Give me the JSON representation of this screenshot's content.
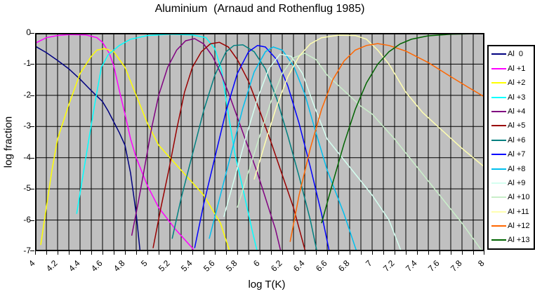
{
  "title": "Aluminium  (Arnaud and Rothenflug 1985)",
  "chart_data": {
    "type": "line",
    "title": "Aluminium  (Arnaud and Rothenflug 1985)",
    "xlabel": "log T(K)",
    "ylabel": "log fraction",
    "xlim": [
      4,
      8
    ],
    "ylim": [
      -7,
      0
    ],
    "grid": "on",
    "plot_background": "#c0c0c0",
    "gridline_color": "#000000",
    "legend_position": "right-outside",
    "axes": {
      "x_minor_step": 0.1,
      "x_label_step": 0.2,
      "y_step": 1,
      "x_tick_labels": [
        "4",
        "4.2",
        "4.4",
        "4.6",
        "4.8",
        "5",
        "5.2",
        "5.4",
        "5.6",
        "5.8",
        "6",
        "6.2",
        "6.4",
        "6.6",
        "6.8",
        "7",
        "7.2",
        "7.4",
        "7.6",
        "7.8",
        "8"
      ],
      "y_tick_labels": [
        "0",
        "-1",
        "-2",
        "-3",
        "-4",
        "-5",
        "-6",
        "-7"
      ]
    },
    "series": [
      {
        "name": "Al  0",
        "color": "#000080",
        "points": [
          [
            4.0,
            -0.42
          ],
          [
            4.1,
            -0.63
          ],
          [
            4.2,
            -0.88
          ],
          [
            4.3,
            -1.15
          ],
          [
            4.4,
            -1.48
          ],
          [
            4.5,
            -1.85
          ],
          [
            4.6,
            -2.2
          ],
          [
            4.65,
            -2.5
          ],
          [
            4.7,
            -2.85
          ],
          [
            4.75,
            -3.2
          ],
          [
            4.8,
            -3.6
          ],
          [
            4.85,
            -4.5
          ],
          [
            4.9,
            -5.8
          ],
          [
            4.94,
            -7.2
          ]
        ]
      },
      {
        "name": "Al +1",
        "color": "#ff00ff",
        "points": [
          [
            4.0,
            -0.33
          ],
          [
            4.1,
            -0.15
          ],
          [
            4.2,
            -0.08
          ],
          [
            4.3,
            -0.05
          ],
          [
            4.45,
            -0.06
          ],
          [
            4.55,
            -0.15
          ],
          [
            4.6,
            -0.3
          ],
          [
            4.66,
            -0.65
          ],
          [
            4.7,
            -1.05
          ],
          [
            4.75,
            -1.85
          ],
          [
            4.8,
            -2.6
          ],
          [
            4.85,
            -3.4
          ],
          [
            4.9,
            -4.0
          ],
          [
            5.0,
            -4.9
          ],
          [
            5.1,
            -5.6
          ],
          [
            5.25,
            -6.3
          ],
          [
            5.4,
            -6.9
          ],
          [
            5.45,
            -7.2
          ]
        ]
      },
      {
        "name": "Al +2",
        "color": "#ffff00",
        "points": [
          [
            4.05,
            -6.8
          ],
          [
            4.1,
            -5.6
          ],
          [
            4.15,
            -4.4
          ],
          [
            4.2,
            -3.4
          ],
          [
            4.3,
            -2.3
          ],
          [
            4.4,
            -1.3
          ],
          [
            4.5,
            -0.75
          ],
          [
            4.55,
            -0.55
          ],
          [
            4.62,
            -0.5
          ],
          [
            4.7,
            -0.6
          ],
          [
            4.8,
            -1.1
          ],
          [
            4.9,
            -2.0
          ],
          [
            5.0,
            -2.9
          ],
          [
            5.1,
            -3.6
          ],
          [
            5.3,
            -4.4
          ],
          [
            5.5,
            -5.2
          ],
          [
            5.65,
            -6.1
          ],
          [
            5.75,
            -7.2
          ]
        ]
      },
      {
        "name": "Al +3",
        "color": "#00ffff",
        "points": [
          [
            4.37,
            -5.8
          ],
          [
            4.42,
            -4.7
          ],
          [
            4.47,
            -3.6
          ],
          [
            4.53,
            -2.3
          ],
          [
            4.59,
            -1.1
          ],
          [
            4.65,
            -0.7
          ],
          [
            4.75,
            -0.4
          ],
          [
            4.85,
            -0.2
          ],
          [
            5.0,
            -0.08
          ],
          [
            5.2,
            -0.04
          ],
          [
            5.4,
            -0.06
          ],
          [
            5.52,
            -0.15
          ],
          [
            5.6,
            -0.5
          ],
          [
            5.66,
            -1.2
          ],
          [
            5.72,
            -2.6
          ],
          [
            5.78,
            -3.9
          ],
          [
            5.85,
            -5.0
          ],
          [
            5.93,
            -6.3
          ],
          [
            5.99,
            -7.2
          ]
        ]
      },
      {
        "name": "Al +4",
        "color": "#800080",
        "points": [
          [
            4.86,
            -6.5
          ],
          [
            4.92,
            -5.4
          ],
          [
            4.98,
            -4.2
          ],
          [
            5.04,
            -3.0
          ],
          [
            5.1,
            -2.0
          ],
          [
            5.18,
            -1.1
          ],
          [
            5.26,
            -0.55
          ],
          [
            5.34,
            -0.25
          ],
          [
            5.42,
            -0.18
          ],
          [
            5.5,
            -0.35
          ],
          [
            5.58,
            -0.75
          ],
          [
            5.66,
            -1.35
          ],
          [
            5.74,
            -2.1
          ],
          [
            5.82,
            -2.9
          ],
          [
            5.9,
            -3.7
          ],
          [
            5.98,
            -4.5
          ],
          [
            6.06,
            -5.4
          ],
          [
            6.14,
            -6.3
          ],
          [
            6.2,
            -7.2
          ]
        ]
      },
      {
        "name": "Al +5",
        "color": "#990000",
        "points": [
          [
            5.05,
            -6.9
          ],
          [
            5.12,
            -5.6
          ],
          [
            5.19,
            -4.4
          ],
          [
            5.26,
            -3.1
          ],
          [
            5.33,
            -1.9
          ],
          [
            5.4,
            -1.1
          ],
          [
            5.48,
            -0.6
          ],
          [
            5.56,
            -0.35
          ],
          [
            5.64,
            -0.3
          ],
          [
            5.72,
            -0.45
          ],
          [
            5.8,
            -0.85
          ],
          [
            5.9,
            -1.55
          ],
          [
            6.0,
            -2.5
          ],
          [
            6.1,
            -3.5
          ],
          [
            6.2,
            -4.55
          ],
          [
            6.3,
            -5.6
          ],
          [
            6.42,
            -7.2
          ]
        ]
      },
      {
        "name": "Al +6",
        "color": "#008080",
        "points": [
          [
            5.22,
            -6.6
          ],
          [
            5.3,
            -5.3
          ],
          [
            5.4,
            -3.9
          ],
          [
            5.5,
            -2.5
          ],
          [
            5.6,
            -1.35
          ],
          [
            5.7,
            -0.6
          ],
          [
            5.77,
            -0.4
          ],
          [
            5.85,
            -0.38
          ],
          [
            5.95,
            -0.6
          ],
          [
            6.05,
            -1.15
          ],
          [
            6.15,
            -2.1
          ],
          [
            6.25,
            -3.3
          ],
          [
            6.35,
            -4.6
          ],
          [
            6.45,
            -6.0
          ],
          [
            6.52,
            -7.2
          ]
        ]
      },
      {
        "name": "Al +7",
        "color": "#0000ff",
        "points": [
          [
            5.42,
            -6.9
          ],
          [
            5.5,
            -5.5
          ],
          [
            5.6,
            -4.0
          ],
          [
            5.7,
            -2.5
          ],
          [
            5.8,
            -1.3
          ],
          [
            5.9,
            -0.6
          ],
          [
            5.98,
            -0.4
          ],
          [
            6.05,
            -0.45
          ],
          [
            6.15,
            -0.85
          ],
          [
            6.25,
            -1.7
          ],
          [
            6.35,
            -2.9
          ],
          [
            6.45,
            -4.3
          ],
          [
            6.55,
            -5.8
          ],
          [
            6.63,
            -7.2
          ]
        ]
      },
      {
        "name": "Al +8",
        "color": "#00bfee",
        "points": [
          [
            5.55,
            -6.6
          ],
          [
            5.65,
            -5.2
          ],
          [
            5.75,
            -3.8
          ],
          [
            5.85,
            -2.4
          ],
          [
            5.95,
            -1.25
          ],
          [
            6.05,
            -0.6
          ],
          [
            6.12,
            -0.45
          ],
          [
            6.2,
            -0.55
          ],
          [
            6.3,
            -1.05
          ],
          [
            6.4,
            -1.95
          ],
          [
            6.5,
            -3.2
          ],
          [
            6.6,
            -4.4
          ],
          [
            6.75,
            -5.8
          ],
          [
            6.88,
            -7.2
          ]
        ]
      },
      {
        "name": "Al +9",
        "color": "#d4fff0",
        "points": [
          [
            5.68,
            -5.9
          ],
          [
            5.78,
            -4.6
          ],
          [
            5.88,
            -3.3
          ],
          [
            5.98,
            -2.1
          ],
          [
            6.08,
            -1.15
          ],
          [
            6.18,
            -0.68
          ],
          [
            6.28,
            -0.75
          ],
          [
            6.38,
            -1.3
          ],
          [
            6.48,
            -2.3
          ],
          [
            6.6,
            -3.4
          ],
          [
            6.8,
            -4.3
          ],
          [
            7.0,
            -5.2
          ],
          [
            7.15,
            -6.0
          ],
          [
            7.28,
            -7.2
          ]
        ]
      },
      {
        "name": "Al +10",
        "color": "#c9eec9",
        "points": [
          [
            5.8,
            -5.6
          ],
          [
            5.9,
            -4.45
          ],
          [
            6.0,
            -3.3
          ],
          [
            6.1,
            -2.2
          ],
          [
            6.2,
            -1.3
          ],
          [
            6.3,
            -0.8
          ],
          [
            6.4,
            -0.65
          ],
          [
            6.5,
            -0.85
          ],
          [
            6.6,
            -1.35
          ],
          [
            6.75,
            -1.85
          ],
          [
            6.9,
            -2.35
          ],
          [
            7.0,
            -2.6
          ],
          [
            7.2,
            -3.4
          ],
          [
            7.4,
            -4.3
          ],
          [
            7.6,
            -5.2
          ],
          [
            7.8,
            -6.1
          ],
          [
            8.0,
            -7.1
          ]
        ]
      },
      {
        "name": "Al +11",
        "color": "#ffffb0",
        "points": [
          [
            5.95,
            -4.7
          ],
          [
            6.05,
            -3.5
          ],
          [
            6.15,
            -2.35
          ],
          [
            6.25,
            -1.4
          ],
          [
            6.35,
            -0.75
          ],
          [
            6.45,
            -0.35
          ],
          [
            6.55,
            -0.15
          ],
          [
            6.7,
            -0.07
          ],
          [
            6.85,
            -0.08
          ],
          [
            6.95,
            -0.2
          ],
          [
            7.05,
            -0.55
          ],
          [
            7.15,
            -1.0
          ],
          [
            7.3,
            -1.9
          ],
          [
            7.45,
            -2.55
          ],
          [
            7.6,
            -3.05
          ],
          [
            7.8,
            -3.7
          ],
          [
            8.0,
            -4.3
          ]
        ]
      },
      {
        "name": "Al +12",
        "color": "#ff6600",
        "points": [
          [
            6.27,
            -6.7
          ],
          [
            6.35,
            -5.2
          ],
          [
            6.45,
            -3.7
          ],
          [
            6.55,
            -2.45
          ],
          [
            6.65,
            -1.5
          ],
          [
            6.75,
            -0.9
          ],
          [
            6.85,
            -0.55
          ],
          [
            6.95,
            -0.4
          ],
          [
            7.05,
            -0.34
          ],
          [
            7.15,
            -0.4
          ],
          [
            7.3,
            -0.58
          ],
          [
            7.5,
            -0.95
          ],
          [
            7.7,
            -1.4
          ],
          [
            7.85,
            -1.73
          ],
          [
            8.0,
            -2.05
          ]
        ]
      },
      {
        "name": "Al +13",
        "color": "#006400",
        "points": [
          [
            6.55,
            -6.1
          ],
          [
            6.65,
            -4.8
          ],
          [
            6.75,
            -3.55
          ],
          [
            6.85,
            -2.45
          ],
          [
            6.95,
            -1.6
          ],
          [
            7.05,
            -1.0
          ],
          [
            7.15,
            -0.6
          ],
          [
            7.25,
            -0.35
          ],
          [
            7.35,
            -0.2
          ],
          [
            7.5,
            -0.09
          ],
          [
            7.7,
            -0.04
          ],
          [
            8.0,
            -0.02
          ]
        ]
      }
    ]
  }
}
